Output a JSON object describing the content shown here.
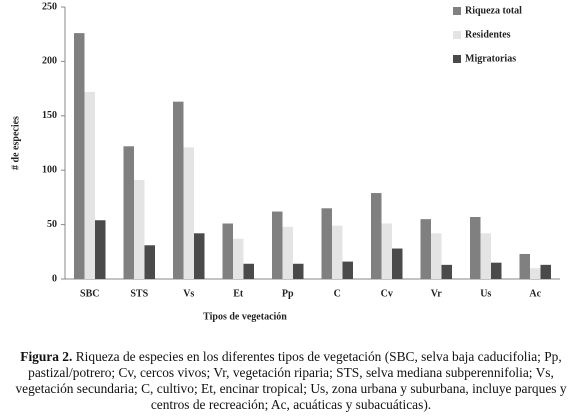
{
  "chart_data": {
    "type": "bar",
    "y_label": "# de especies",
    "x_label": "Tipos de vegetación",
    "categories": [
      "SBC",
      "STS",
      "Vs",
      "Et",
      "Pp",
      "C",
      "Cv",
      "Vr",
      "Us",
      "Ac"
    ],
    "series": [
      {
        "name": "Riqueza total",
        "color": "#808080",
        "values": [
          226,
          122,
          163,
          51,
          62,
          65,
          79,
          55,
          57,
          23
        ]
      },
      {
        "name": "Residentes",
        "color": "#e4e4e4",
        "values": [
          172,
          91,
          121,
          37,
          48,
          49,
          51,
          42,
          42,
          10
        ]
      },
      {
        "name": "Migratorias",
        "color": "#4a4a4a",
        "values": [
          54,
          31,
          42,
          14,
          14,
          16,
          28,
          13,
          15,
          13
        ]
      }
    ],
    "ylim": [
      0,
      250
    ],
    "yticks": [
      0,
      50,
      100,
      150,
      200,
      250
    ],
    "legend": "top-right"
  },
  "caption": {
    "label": "Figura 2.",
    "text": "Riqueza de especies en los diferentes tipos de vegetación (SBC, selva baja caducifolia; Pp, pastizal/potrero; Cv, cercos vivos; Vr, vegetación riparia; STS, selva mediana subperennifolia; Vs, vegetación secundaria; C, cultivo; Et, encinar tropical; Us, zona urbana y suburbana, incluye parques y centros de recreación; Ac, acuáticas y subacuáticas)."
  }
}
